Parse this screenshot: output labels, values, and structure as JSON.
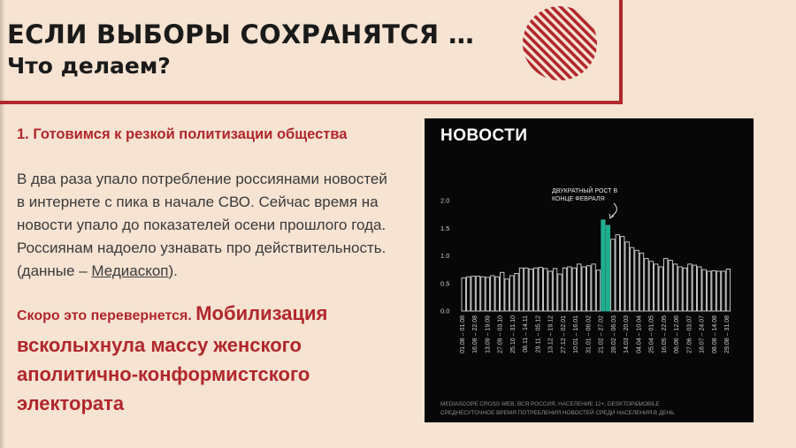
{
  "slide": {
    "title_line1": "ЕСЛИ ВЫБОРЫ СОХРАНЯТСЯ …",
    "title_line2": "Что делаем?"
  },
  "section": {
    "heading": "1. Готовимся к резкой политизации общества",
    "paragraph_lines": [
      "В два раза упало потребление  россиянами новостей",
      "в интернете с пика в начале СВО. Сейчас время на",
      "новости упало до показателей осени прошлого года.",
      "Россиянам надоело узнавать про действительность."
    ],
    "source_prefix": "(данные – ",
    "source_link": "Медиаскоп",
    "source_suffix": ")."
  },
  "callout": {
    "lead": "Скоро это перевернется.",
    "main_first": "Мобилизация",
    "main_lines": [
      "всколыхнула массу женского",
      "аполитично-конформистского",
      "электората"
    ]
  },
  "colors": {
    "background": "#f6e3d2",
    "accent": "#b1272c",
    "panel": "#070707",
    "bar_outline": "#d8d8d8",
    "bar_highlight": "#1fae8f"
  },
  "chart_data": {
    "type": "bar",
    "title": "НОВОСТИ",
    "annotation": [
      "ДВУКРАТНЫЙ РОСТ В",
      "КОНЦЕ ФЕВРАЛЯ"
    ],
    "ylim": [
      0,
      2.0
    ],
    "yticks": [
      "0.0",
      "0.5",
      "1.0",
      "1.5",
      "2.0"
    ],
    "x_labels": [
      "01.08 – 01.08",
      "16.08 – 22.08",
      "13.09 – 19.09",
      "27.09 – 03.10",
      "25.10 – 31.10",
      "08.11 – 14.11",
      "29.11 – 05.12",
      "13.12 – 19.12",
      "27.12 – 02.01",
      "10.01 – 16.01",
      "31.01 – 06.02",
      "21.02 – 27.02",
      "28.02 – 06.03",
      "14.03 – 20.03",
      "04.04 – 10.04",
      "25.04 – 01.05",
      "16.05 – 22.05",
      "06.06 – 12.06",
      "27.06 – 03.07",
      "18.07 – 24.07",
      "08.08 – 14.08",
      "29.08 – 31.08"
    ],
    "values": [
      0.6,
      0.62,
      0.63,
      0.63,
      0.62,
      0.61,
      0.64,
      0.62,
      0.7,
      0.58,
      0.64,
      0.68,
      0.78,
      0.78,
      0.76,
      0.78,
      0.79,
      0.77,
      0.72,
      0.77,
      0.67,
      0.78,
      0.8,
      0.78,
      0.85,
      0.8,
      0.82,
      0.85,
      0.74,
      1.65,
      1.55,
      1.3,
      1.38,
      1.35,
      1.25,
      1.15,
      1.1,
      1.05,
      0.95,
      0.9,
      0.85,
      0.8,
      0.95,
      0.92,
      0.85,
      0.8,
      0.78,
      0.85,
      0.83,
      0.8,
      0.75,
      0.72,
      0.73,
      0.72,
      0.72,
      0.76
    ],
    "highlight_indices": [
      29,
      30
    ],
    "footnote_lines": [
      "MEDIASCOPE CROSS WEB, ВСЯ РОССИЯ, НАСЕЛЕНИЕ 12+, DESKTOP&MOBILE",
      "СРЕДНЕСУТОЧНОЕ ВРЕМЯ ПОТРЕБЛЕНИЯ НОВОСТЕЙ СРЕДИ НАСЕЛЕНИЯ В ДЕНЬ"
    ]
  }
}
